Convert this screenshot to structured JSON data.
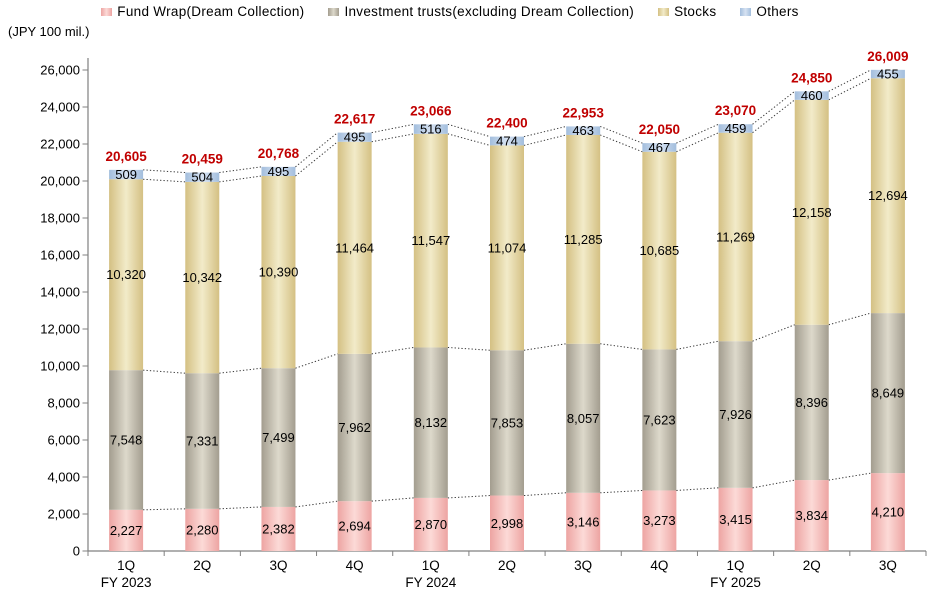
{
  "chart_data": {
    "type": "bar",
    "stacked": true,
    "unit_label": "(JPY 100 mil.)",
    "legend_position": "top",
    "grid": false,
    "ylim": [
      0,
      26000
    ],
    "ytick_step": 2000,
    "categories": [
      "1Q",
      "2Q",
      "3Q",
      "4Q",
      "1Q",
      "2Q",
      "3Q",
      "4Q",
      "1Q",
      "2Q",
      "3Q"
    ],
    "fiscal_year_labels": [
      {
        "index": 0,
        "label": "FY 2023"
      },
      {
        "index": 4,
        "label": "FY 2024"
      },
      {
        "index": 8,
        "label": "FY 2025"
      }
    ],
    "series": [
      {
        "name": "Fund Wrap(Dream Collection)",
        "slug": "fund-wrap",
        "edge_color": "#eda4a2",
        "center_color": "#fcdad7",
        "values": [
          2227,
          2280,
          2382,
          2694,
          2870,
          2998,
          3146,
          3273,
          3415,
          3834,
          4210
        ]
      },
      {
        "name": "Investment trusts(excluding Dream Collection)",
        "slug": "investment-trusts",
        "edge_color": "#a39d8f",
        "center_color": "#ddd9cb",
        "values": [
          7548,
          7331,
          7499,
          7962,
          8132,
          7853,
          8057,
          7623,
          7926,
          8396,
          8649
        ]
      },
      {
        "name": "Stocks",
        "slug": "stocks",
        "edge_color": "#d4c083",
        "center_color": "#f2ebc9",
        "values": [
          10320,
          10342,
          10390,
          11464,
          11547,
          11074,
          11285,
          10685,
          11269,
          12158,
          12694
        ]
      },
      {
        "name": "Others",
        "slug": "others",
        "edge_color": "#a3bedd",
        "center_color": "#d6e2f2",
        "values": [
          509,
          504,
          495,
          495,
          516,
          474,
          463,
          467,
          459,
          460,
          455
        ]
      }
    ],
    "totals": [
      20605,
      20459,
      20768,
      22617,
      23066,
      22400,
      22953,
      22050,
      23070,
      24850,
      26009
    ],
    "total_label_color": "#c00000",
    "axis_color": "#808080",
    "connector_color": "#3a3a3a",
    "value_label_color": "#000000"
  }
}
